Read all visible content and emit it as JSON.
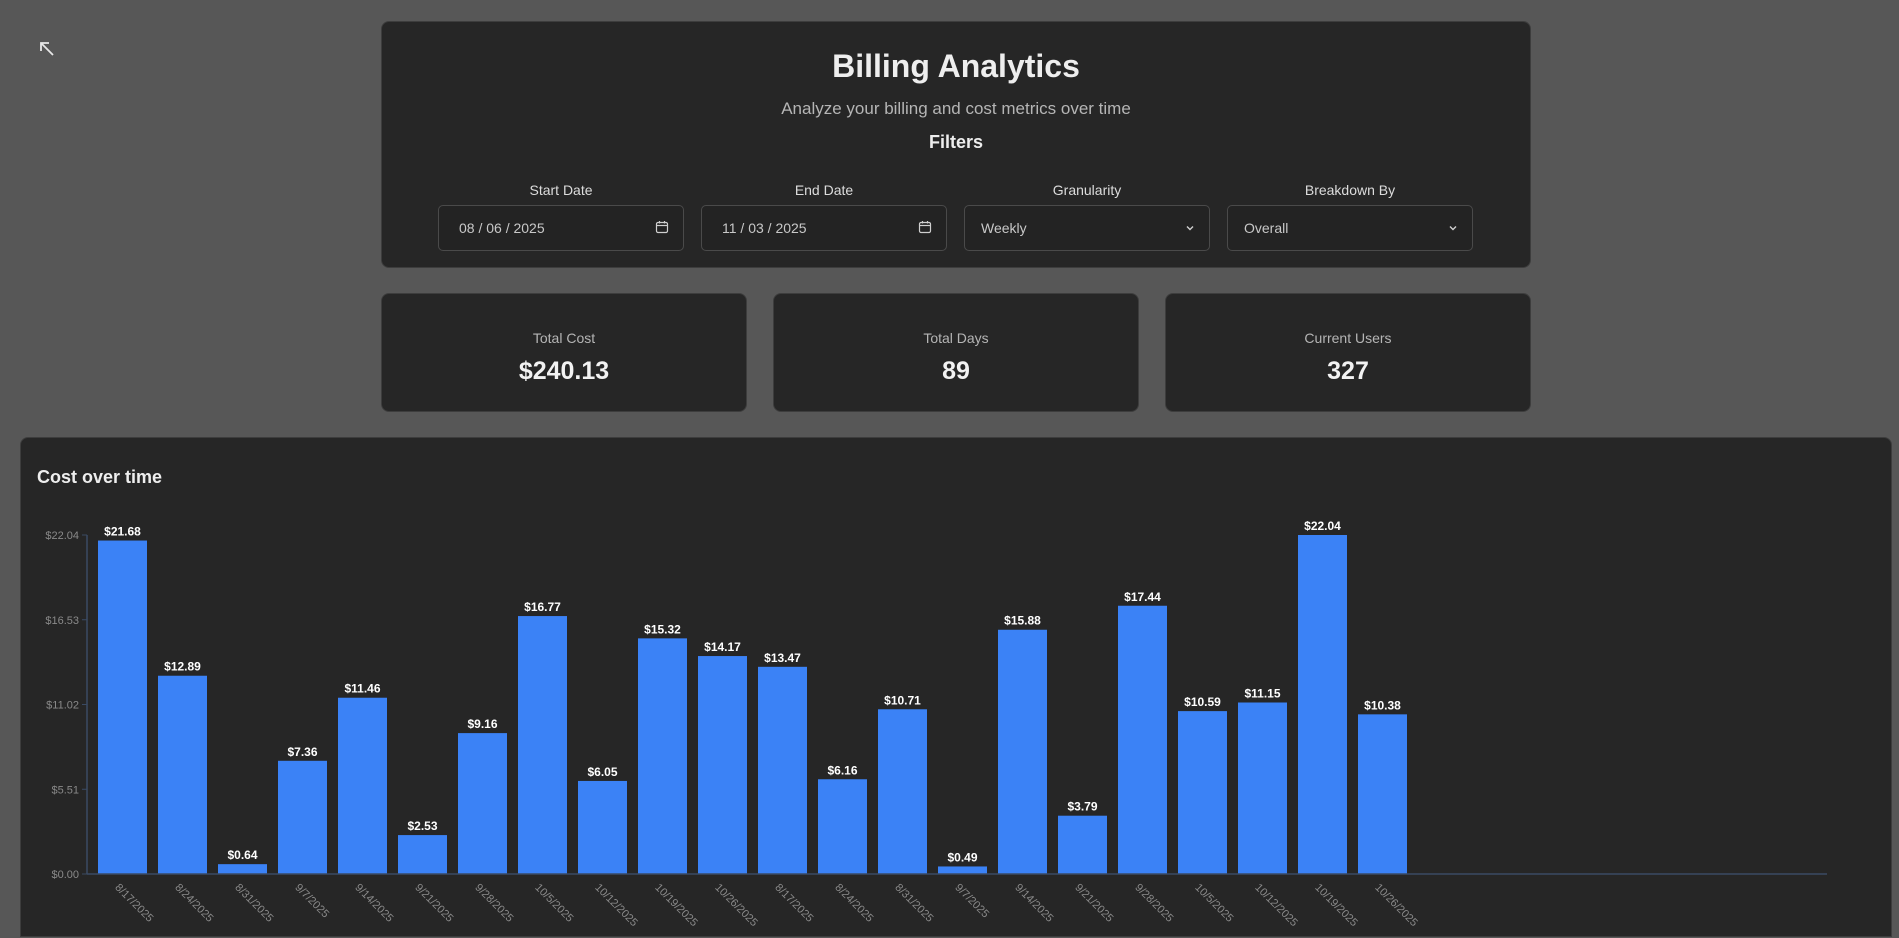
{
  "header": {
    "title": "Billing Analytics",
    "subtitle": "Analyze your billing and cost metrics over time",
    "filters_title": "Filters"
  },
  "filters": {
    "start_date": {
      "label": "Start Date",
      "value": "08 / 06 / 2025"
    },
    "end_date": {
      "label": "End Date",
      "value": "11 / 03 / 2025"
    },
    "granularity": {
      "label": "Granularity",
      "value": "Weekly"
    },
    "breakdown": {
      "label": "Breakdown By",
      "value": "Overall"
    }
  },
  "stats": {
    "total_cost": {
      "label": "Total Cost",
      "value": "$240.13"
    },
    "total_days": {
      "label": "Total Days",
      "value": "89"
    },
    "current_users": {
      "label": "Current Users",
      "value": "327"
    }
  },
  "colors": {
    "bar": "#3b82f6",
    "axis": "#3a4a63",
    "tick_text": "#8a8a8a",
    "label_text": "#ffffff"
  },
  "chart_data": {
    "type": "bar",
    "title": "Cost over time",
    "categories": [
      "8/17/2025",
      "8/24/2025",
      "8/31/2025",
      "9/7/2025",
      "9/14/2025",
      "9/21/2025",
      "9/28/2025",
      "10/5/2025",
      "10/12/2025",
      "10/19/2025",
      "10/26/2025",
      "8/17/2025",
      "8/24/2025",
      "8/31/2025",
      "9/7/2025",
      "9/14/2025",
      "9/21/2025",
      "9/28/2025",
      "10/5/2025",
      "10/12/2025",
      "10/19/2025",
      "10/26/2025"
    ],
    "values": [
      21.68,
      12.89,
      0.64,
      7.36,
      11.46,
      2.53,
      9.16,
      16.77,
      6.05,
      15.32,
      14.17,
      13.47,
      6.16,
      10.71,
      0.49,
      15.88,
      3.79,
      17.44,
      10.59,
      11.15,
      22.04,
      10.38
    ],
    "value_labels": [
      "$21.68",
      "$12.89",
      "$0.64",
      "$7.36",
      "$11.46",
      "$2.53",
      "$9.16",
      "$16.77",
      "$6.05",
      "$15.32",
      "$14.17",
      "$13.47",
      "$6.16",
      "$10.71",
      "$0.49",
      "$15.88",
      "$3.79",
      "$17.44",
      "$10.59",
      "$11.15",
      "$22.04",
      "$10.38"
    ],
    "yticks": [
      0,
      5.51,
      11.02,
      16.53,
      22.04
    ],
    "ytick_labels": [
      "$0.00",
      "$5.51",
      "$11.02",
      "$16.53",
      "$22.04"
    ],
    "ylim": [
      0,
      22.04
    ],
    "xlabel": "",
    "ylabel": ""
  }
}
